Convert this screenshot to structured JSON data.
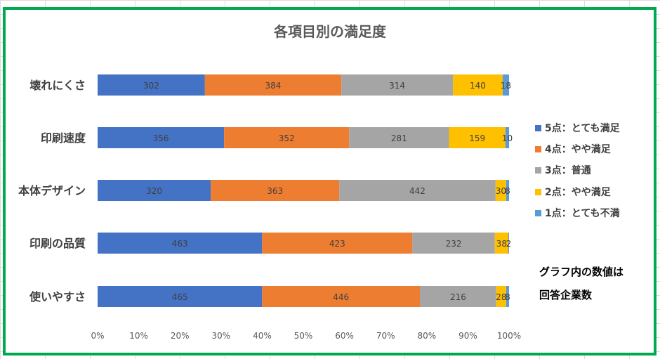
{
  "chart_data": {
    "type": "bar",
    "orientation": "horizontal",
    "stacked": "percent",
    "title": "各項目別の満足度",
    "categories": [
      "壊れにくさ",
      "印刷速度",
      "本体デザイン",
      "印刷の品質",
      "使いやすさ"
    ],
    "series": [
      {
        "name": "5点：とても満足",
        "color": "#4472C4",
        "values": [
          302,
          356,
          320,
          463,
          465
        ]
      },
      {
        "name": "4点：やや満足",
        "color": "#ED7D31",
        "values": [
          384,
          352,
          363,
          423,
          446
        ]
      },
      {
        "name": "3点：普通",
        "color": "#A5A5A5",
        "values": [
          314,
          281,
          442,
          232,
          216
        ]
      },
      {
        "name": "2点：やや満足",
        "color": "#FFC000",
        "values": [
          140,
          159,
          30,
          38,
          28
        ]
      },
      {
        "name": "1点：とても不満",
        "color": "#5B9BD5",
        "values": [
          18,
          10,
          8,
          2,
          8
        ]
      }
    ],
    "x_ticks": [
      "0%",
      "10%",
      "20%",
      "30%",
      "40%",
      "50%",
      "60%",
      "70%",
      "80%",
      "90%",
      "100%"
    ],
    "xlim": [
      0,
      100
    ],
    "data_labels": true,
    "grid": false,
    "legend_position": "right",
    "annotation": [
      "グラフ内の数値は",
      "回答企業数"
    ]
  }
}
